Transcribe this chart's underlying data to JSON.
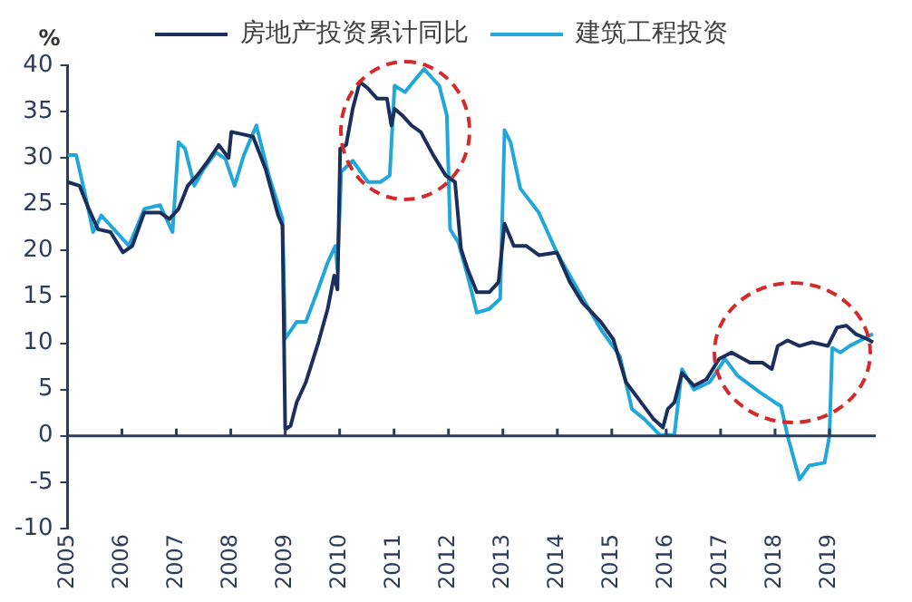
{
  "chart_data": {
    "type": "line",
    "ylabel": "%",
    "legend": "top",
    "grid": false,
    "marker": "none",
    "line_style": "solid",
    "xlim": [
      2005,
      2019.85
    ],
    "xticks": [
      2005,
      2006,
      2007,
      2008,
      2009,
      2010,
      2011,
      2012,
      2013,
      2014,
      2015,
      2016,
      2017,
      2018,
      2019
    ],
    "ylim": [
      -10,
      40
    ],
    "yticks": [
      -10,
      -5,
      0,
      5,
      10,
      15,
      20,
      25,
      30,
      35,
      40
    ],
    "series": [
      {
        "name": "房地产投资累计同比",
        "color": "#1b2f5c",
        "x": [
          2005.0,
          2005.22,
          2005.39,
          2005.56,
          2005.79,
          2006.02,
          2006.19,
          2006.41,
          2006.7,
          2006.87,
          2007.04,
          2007.21,
          2007.38,
          2007.56,
          2007.78,
          2007.96,
          2008.01,
          2008.18,
          2008.41,
          2008.64,
          2008.87,
          2008.95,
          2009.0,
          2009.1,
          2009.21,
          2009.38,
          2009.61,
          2009.78,
          2009.9,
          2009.96,
          2010.01,
          2010.12,
          2010.24,
          2010.37,
          2010.52,
          2010.69,
          2010.87,
          2010.95,
          2011.01,
          2011.15,
          2011.32,
          2011.49,
          2011.72,
          2011.95,
          2012.12,
          2012.23,
          2012.35,
          2012.52,
          2012.75,
          2012.92,
          2013.03,
          2013.2,
          2013.43,
          2013.66,
          2013.99,
          2014.23,
          2014.46,
          2014.8,
          2015.03,
          2015.26,
          2015.49,
          2015.77,
          2015.94,
          2016.03,
          2016.15,
          2016.29,
          2016.51,
          2016.74,
          2016.97,
          2017.2,
          2017.54,
          2017.77,
          2017.94,
          2018.05,
          2018.23,
          2018.45,
          2018.68,
          2018.97,
          2019.14,
          2019.31,
          2019.48,
          2019.71,
          2019.8
        ],
        "values": [
          27.4,
          27,
          24.5,
          22.3,
          22,
          19.8,
          20.5,
          24.1,
          24.1,
          23.4,
          24.5,
          27,
          28.1,
          29.5,
          31.4,
          30,
          32.8,
          32.6,
          32.3,
          28.8,
          23.8,
          22.7,
          0.7,
          1.1,
          3.6,
          5.8,
          10.1,
          13.7,
          17.3,
          15.8,
          31,
          31.4,
          35.3,
          38.2,
          37.5,
          36.4,
          36.4,
          33.5,
          35.3,
          34.6,
          33.5,
          32.8,
          30.3,
          28.1,
          27.4,
          20.2,
          18,
          15.5,
          15.5,
          16.6,
          22.9,
          20.5,
          20.5,
          19.5,
          19.8,
          16.6,
          14.4,
          12.3,
          10.4,
          5.8,
          4,
          1.8,
          0.9,
          2.9,
          3.6,
          6.8,
          5.4,
          6.1,
          8.3,
          9,
          7.9,
          7.9,
          7.2,
          9.7,
          10.3,
          9.7,
          10.1,
          9.7,
          11.7,
          11.9,
          11,
          10.4,
          10.1
        ]
      },
      {
        "name": "建筑工程投资",
        "color": "#22a7da",
        "x": [
          2005.0,
          2005.16,
          2005.33,
          2005.47,
          2005.62,
          2005.79,
          2006.13,
          2006.41,
          2006.7,
          2006.93,
          2007.04,
          2007.16,
          2007.33,
          2007.5,
          2007.73,
          2007.9,
          2008.07,
          2008.24,
          2008.47,
          2008.7,
          2008.95,
          2009.0,
          2009.21,
          2009.38,
          2009.61,
          2009.78,
          2009.92,
          2009.96,
          2010.03,
          2010.24,
          2010.52,
          2010.75,
          2010.92,
          2011.01,
          2011.2,
          2011.55,
          2011.83,
          2011.97,
          2012.03,
          2012.18,
          2012.35,
          2012.52,
          2012.75,
          2012.95,
          2013.03,
          2013.14,
          2013.32,
          2013.66,
          2013.99,
          2014.23,
          2014.51,
          2014.8,
          2015.15,
          2015.37,
          2015.6,
          2015.88,
          2016.15,
          2016.29,
          2016.51,
          2016.8,
          2017.08,
          2017.31,
          2017.72,
          2018.0,
          2018.11,
          2018.23,
          2018.45,
          2018.63,
          2018.91,
          2019.0,
          2019.05,
          2019.2,
          2019.37,
          2019.8
        ],
        "values": [
          30.3,
          30.3,
          25.9,
          22,
          23.8,
          22.7,
          20.5,
          24.5,
          24.9,
          22,
          31.7,
          31,
          27,
          28.8,
          30.6,
          29.9,
          27,
          30.3,
          33.5,
          28.1,
          23.4,
          10.5,
          12.3,
          12.3,
          15.9,
          18.7,
          20.5,
          18,
          28.5,
          29.7,
          27.4,
          27.4,
          28.1,
          37.8,
          37.1,
          39.6,
          37.8,
          34.6,
          22.3,
          20.9,
          17.3,
          13.3,
          13.7,
          14.8,
          33,
          31.7,
          26.7,
          24.1,
          19.8,
          17.3,
          14.4,
          11.5,
          8.6,
          2.9,
          1.8,
          0.1,
          0.1,
          7.2,
          5,
          5.8,
          8.3,
          6.5,
          4.7,
          3.6,
          3.2,
          0,
          -4.7,
          -3.2,
          -2.9,
          0,
          9.5,
          9,
          9.7,
          11
        ]
      }
    ]
  }
}
